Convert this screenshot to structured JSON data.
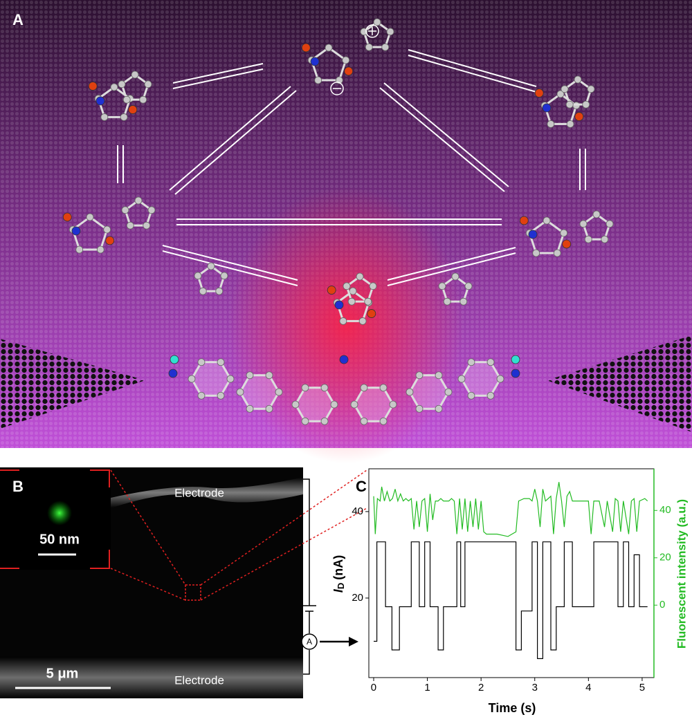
{
  "panel_a": {
    "label": "A"
  },
  "panel_b": {
    "label": "B",
    "electrode_top": "Electrode",
    "electrode_bottom": "Electrode",
    "scale_inset": "50 nm",
    "scale_main": "5 μm",
    "ammeter": "A"
  },
  "chart_data": {
    "type": "line",
    "label": "C",
    "xlabel": "Time (s)",
    "ylabel": {
      "symbol": "I",
      "subscript": "D",
      "unit": "(nA)"
    },
    "y2label": "Fluorescent intensity (a.u.)",
    "xlim": [
      -0.09,
      5.22
    ],
    "xticks": [
      0,
      1,
      2,
      3,
      4,
      5
    ],
    "ylim": [
      1.6,
      49.9
    ],
    "yticks": [
      20,
      40
    ],
    "y2lim": [
      -30.6,
      57.6
    ],
    "y2ticks": [
      0,
      20,
      40
    ],
    "series": [
      {
        "color": "#000000",
        "axis": "y",
        "x": [
          0,
          0.06,
          0.06,
          0.22,
          0.22,
          0.34,
          0.34,
          0.48,
          0.48,
          0.7,
          0.7,
          0.85,
          0.85,
          0.95,
          0.95,
          1.05,
          1.05,
          1.2,
          1.2,
          1.3,
          1.3,
          1.55,
          1.55,
          1.62,
          1.62,
          1.7,
          1.7,
          2.65,
          2.65,
          2.75,
          2.75,
          2.95,
          2.95,
          3.05,
          3.05,
          3.15,
          3.15,
          3.3,
          3.3,
          3.4,
          3.4,
          3.55,
          3.55,
          3.7,
          3.7,
          4.1,
          4.1,
          4.55,
          4.55,
          4.65,
          4.65,
          4.75,
          4.75,
          4.85,
          4.85,
          4.95,
          4.95,
          5.1
        ],
        "values": [
          10,
          10,
          33,
          33,
          18,
          18,
          8,
          8,
          18,
          18,
          33,
          33,
          18,
          18,
          33,
          33,
          18,
          18,
          8,
          8,
          18,
          18,
          33,
          33,
          18,
          18,
          33,
          33,
          8,
          8,
          17,
          17,
          33,
          33,
          6,
          6,
          33,
          33,
          8,
          8,
          18,
          18,
          33,
          33,
          18,
          18,
          33,
          33,
          18,
          18,
          33,
          33,
          18,
          18,
          30,
          30,
          18,
          18
        ]
      },
      {
        "color": "#22bb22",
        "axis": "y2",
        "x": [
          0,
          0.03,
          0.07,
          0.12,
          0.15,
          0.2,
          0.25,
          0.3,
          0.35,
          0.4,
          0.45,
          0.5,
          0.55,
          0.6,
          0.65,
          0.7,
          0.75,
          0.8,
          0.85,
          0.9,
          0.95,
          1.0,
          1.05,
          1.1,
          1.15,
          1.2,
          1.25,
          1.3,
          1.35,
          1.4,
          1.45,
          1.5,
          1.55,
          1.6,
          1.65,
          1.7,
          1.75,
          1.8,
          1.85,
          1.9,
          1.95,
          2.0,
          2.05,
          2.1,
          2.3,
          2.5,
          2.65,
          2.7,
          2.8,
          2.9,
          2.95,
          3.0,
          3.05,
          3.1,
          3.15,
          3.2,
          3.3,
          3.35,
          3.4,
          3.45,
          3.5,
          3.55,
          3.6,
          3.65,
          3.7,
          3.9,
          4.0,
          4.05,
          4.1,
          4.2,
          4.3,
          4.35,
          4.45,
          4.5,
          4.55,
          4.6,
          4.65,
          4.75,
          4.8,
          4.85,
          4.9,
          4.95,
          5.05,
          5.1
        ],
        "values": [
          46,
          30,
          45,
          44,
          50,
          44,
          48,
          44,
          45,
          49,
          44,
          47,
          44,
          45,
          44,
          45,
          32,
          44,
          33,
          44,
          45,
          31,
          47,
          36,
          44,
          44,
          45,
          44,
          44,
          44,
          45,
          44,
          30,
          45,
          32,
          45,
          31,
          44,
          33,
          45,
          32,
          44,
          31,
          30,
          30,
          29,
          31,
          44,
          45,
          45,
          44,
          49,
          44,
          33,
          49,
          44,
          46,
          30,
          45,
          52,
          44,
          33,
          46,
          48,
          44,
          44,
          44,
          30,
          44,
          44,
          33,
          44,
          31,
          45,
          44,
          31,
          44,
          30,
          44,
          45,
          31,
          44,
          45,
          44
        ]
      }
    ]
  }
}
